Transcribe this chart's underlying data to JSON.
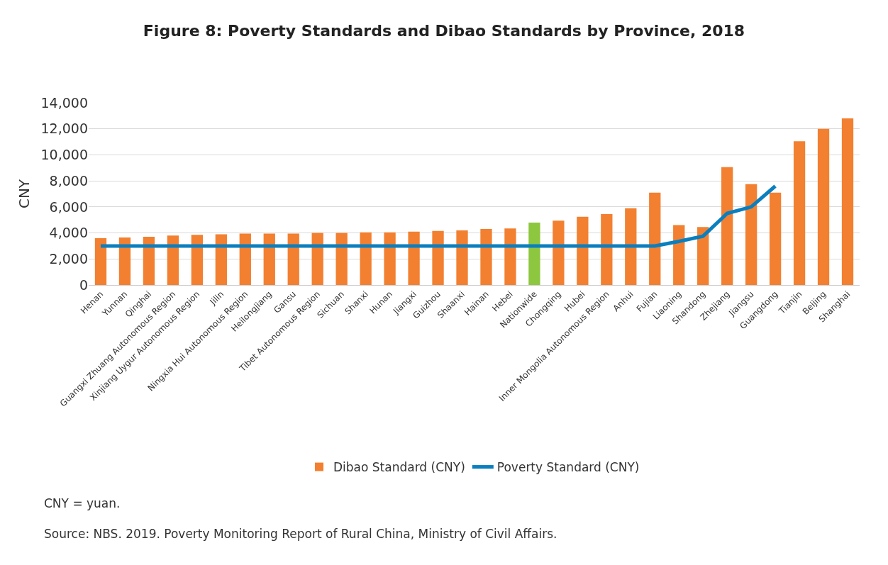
{
  "chart_data": {
    "type": "bar",
    "title": "Figure 8: Poverty Standards and Dibao Standards by Province, 2018",
    "ylabel": "CNY",
    "categories": [
      "Henan",
      "Yunnan",
      "Qinghai",
      "Guangxi Zhuang Autonomous Region",
      "Xinjiang Uygur Autonomous Region",
      "Jilin",
      "Ningxia Hui Autonomous Region",
      "Heilongjiang",
      "Gansu",
      "Tibet Autonomous Region",
      "Sichuan",
      "Shanxi",
      "Hunan",
      "Jiangxi",
      "Guizhou",
      "Shaanxi",
      "Hainan",
      "Hebei",
      "Nationwide",
      "Chongqing",
      "Hubei",
      "Inner Mongolia Autonomous Region",
      "Anhui",
      "Fujian",
      "Liaoning",
      "Shandong",
      "Zhejiang",
      "Jiangsu",
      "Guangdong",
      "Tianjin",
      "Beijing",
      "Shanghai"
    ],
    "series": [
      {
        "name": "Dibao Standard (CNY)",
        "colors": [
          "#f28030",
          "#f28030",
          "#f28030",
          "#f28030",
          "#f28030",
          "#f28030",
          "#f28030",
          "#f28030",
          "#f28030",
          "#f28030",
          "#f28030",
          "#f28030",
          "#f28030",
          "#f28030",
          "#f28030",
          "#f28030",
          "#f28030",
          "#f28030",
          "#8dc63f",
          "#f28030",
          "#f28030",
          "#f28030",
          "#f28030",
          "#f28030",
          "#f28030",
          "#f28030",
          "#f28030",
          "#f28030",
          "#f28030",
          "#f28030",
          "#f28030",
          "#f28030"
        ],
        "values": [
          3600,
          3650,
          3700,
          3800,
          3850,
          3900,
          3950,
          3950,
          3950,
          4000,
          4000,
          4050,
          4050,
          4100,
          4150,
          4200,
          4300,
          4350,
          4800,
          4950,
          5250,
          5450,
          5900,
          7100,
          4600,
          4450,
          9050,
          7750,
          7100,
          11050,
          12000,
          12800
        ]
      },
      {
        "name": "Poverty Standard (CNY)",
        "type": "line",
        "color": "#0a7fbf",
        "values": [
          3000,
          3000,
          3000,
          3000,
          3000,
          3000,
          3000,
          3000,
          3000,
          3000,
          3000,
          3000,
          3000,
          3000,
          3000,
          3000,
          3000,
          3000,
          3000,
          3000,
          3000,
          3000,
          3000,
          3000,
          3350,
          3750,
          5500,
          6000,
          7600,
          null,
          null,
          null
        ]
      }
    ],
    "ylim": [
      0,
      14000
    ],
    "yticks": [
      {
        "value": 0,
        "label": "0"
      },
      {
        "value": 2000,
        "label": "2,000"
      },
      {
        "value": 4000,
        "label": "4,000"
      },
      {
        "value": 6000,
        "label": "6,000"
      },
      {
        "value": 8000,
        "label": "8,000"
      },
      {
        "value": 10000,
        "label": "10,000"
      },
      {
        "value": 12000,
        "label": "12,000"
      },
      {
        "value": 14000,
        "label": "14,000"
      }
    ],
    "grid": "y",
    "legend": "bottom",
    "marker": "none",
    "line_style": "solid",
    "annotations": [
      "CNY = yuan.",
      "Source: NBS. 2019. Poverty Monitoring Report of Rural China, Ministry of Civil Affairs."
    ]
  }
}
